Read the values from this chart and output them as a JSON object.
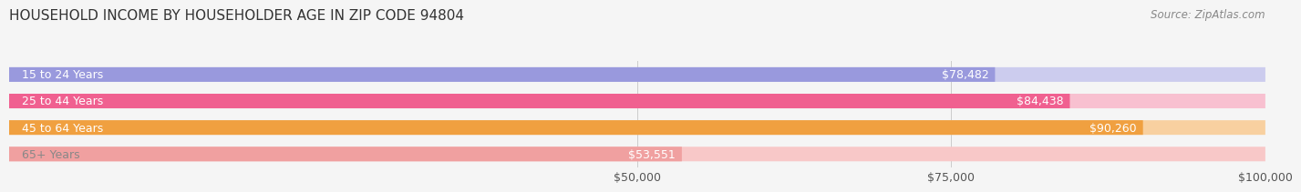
{
  "title": "HOUSEHOLD INCOME BY HOUSEHOLDER AGE IN ZIP CODE 94804",
  "source": "Source: ZipAtlas.com",
  "categories": [
    "15 to 24 Years",
    "25 to 44 Years",
    "45 to 64 Years",
    "65+ Years"
  ],
  "values": [
    78482,
    84438,
    90260,
    53551
  ],
  "bar_colors": [
    "#9999dd",
    "#f06090",
    "#f0a040",
    "#f0a0a0"
  ],
  "bar_colors_light": [
    "#ccccee",
    "#f8c0d0",
    "#f8d0a0",
    "#f8c8c8"
  ],
  "value_labels": [
    "$78,482",
    "$84,438",
    "$90,260",
    "$53,551"
  ],
  "xlim": [
    0,
    100000
  ],
  "xticks": [
    50000,
    75000,
    100000
  ],
  "xticklabels": [
    "$50,000",
    "$75,000",
    "$100,000"
  ],
  "background_color": "#f5f5f5",
  "bar_bg_color": "#e8e8e8",
  "title_fontsize": 11,
  "source_fontsize": 8.5,
  "label_fontsize": 9,
  "value_fontsize": 9,
  "tick_fontsize": 9
}
